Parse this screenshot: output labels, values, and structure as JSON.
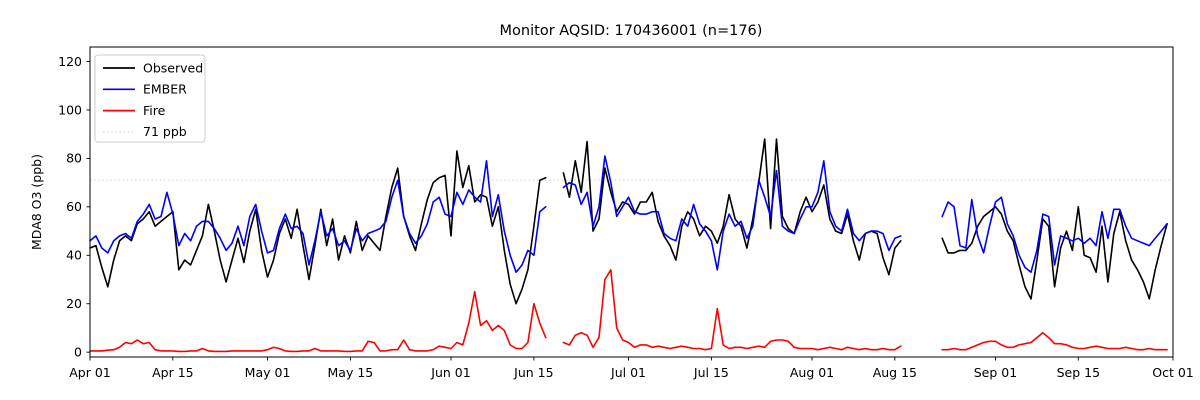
{
  "figure": {
    "title": "Monitor AQSID: 170436001 (n=176)",
    "ylabel": "MDA8 O3 (ppb)",
    "xlabel": ""
  },
  "chart_data": {
    "type": "line",
    "title": "Monitor AQSID: 170436001 (n=176)",
    "xlabel": "",
    "ylabel": "MDA8 O3 (ppb)",
    "ylim": [
      -2,
      126
    ],
    "yticks": [
      0,
      20,
      40,
      60,
      80,
      100,
      120
    ],
    "x_is_daily_dates": "Apr 01 through Sep 30, one point per day; null = missing day",
    "n_days": 183,
    "xticks": [
      {
        "label": "Apr 01",
        "day": 0
      },
      {
        "label": "Apr 15",
        "day": 14
      },
      {
        "label": "May 01",
        "day": 30
      },
      {
        "label": "May 15",
        "day": 44
      },
      {
        "label": "Jun 01",
        "day": 61
      },
      {
        "label": "Jun 15",
        "day": 75
      },
      {
        "label": "Jul 01",
        "day": 91
      },
      {
        "label": "Jul 15",
        "day": 105
      },
      {
        "label": "Aug 01",
        "day": 122
      },
      {
        "label": "Aug 15",
        "day": 136
      },
      {
        "label": "Sep 01",
        "day": 153
      },
      {
        "label": "Sep 15",
        "day": 167
      },
      {
        "label": "Oct 01",
        "day": 183
      }
    ],
    "reference_line": {
      "label": "71 ppb",
      "value": 71,
      "color": "#d9d9d9",
      "style": "dotted"
    },
    "legend": {
      "position": "upper-left",
      "entries": [
        {
          "label": "Observed",
          "color": "#000000",
          "style": "solid"
        },
        {
          "label": "EMBER",
          "color": "#0000ff",
          "style": "solid"
        },
        {
          "label": "Fire",
          "color": "#ff0000",
          "style": "solid"
        },
        {
          "label": "71 ppb",
          "color": "#d9d9d9",
          "style": "dotted"
        }
      ]
    },
    "series": [
      {
        "name": "Observed",
        "color": "#000000",
        "values": [
          43,
          44,
          35,
          27,
          38,
          46,
          48,
          46,
          53,
          55,
          58,
          52,
          54,
          56,
          58,
          34,
          38,
          36,
          42,
          48,
          61,
          50,
          38,
          29,
          38,
          47,
          37,
          50,
          59,
          42,
          31,
          38,
          49,
          55,
          47,
          59,
          44,
          30,
          44,
          59,
          44,
          55,
          38,
          48,
          41,
          54,
          42,
          48,
          45,
          42,
          56,
          68,
          76,
          56,
          48,
          42,
          53,
          63,
          70,
          72,
          73,
          48,
          83,
          68,
          77,
          62,
          65,
          64,
          52,
          60,
          42,
          28,
          20,
          26,
          34,
          52,
          71,
          72,
          null,
          null,
          74,
          64,
          79,
          66,
          87,
          50,
          55,
          76,
          66,
          58,
          62,
          61,
          57,
          62,
          62,
          66,
          54,
          48,
          44,
          38,
          52,
          58,
          55,
          48,
          52,
          50,
          45,
          52,
          65,
          55,
          52,
          43,
          55,
          70,
          88,
          51,
          88,
          56,
          51,
          49,
          58,
          64,
          58,
          62,
          69,
          55,
          50,
          49,
          57,
          46,
          38,
          49,
          50,
          49,
          39,
          32,
          43,
          46,
          null,
          null,
          null,
          null,
          null,
          null,
          47,
          41,
          41,
          42,
          42,
          45,
          52,
          56,
          58,
          60,
          57,
          50,
          46,
          36,
          27,
          22,
          38,
          55,
          52,
          27,
          43,
          50,
          42,
          60,
          40,
          39,
          33,
          52,
          29,
          49,
          58,
          46,
          38,
          34,
          29,
          22,
          34,
          44,
          53
        ]
      },
      {
        "name": "EMBER",
        "color": "#0000ff",
        "values": [
          46,
          48,
          43,
          41,
          46,
          48,
          49,
          47,
          54,
          57,
          61,
          55,
          56,
          66,
          57,
          44,
          49,
          46,
          52,
          54,
          54,
          51,
          47,
          42,
          45,
          52,
          44,
          56,
          61,
          50,
          41,
          42,
          51,
          57,
          51,
          52,
          49,
          36,
          46,
          58,
          48,
          51,
          44,
          46,
          42,
          51,
          46,
          49,
          50,
          51,
          54,
          64,
          71,
          56,
          49,
          45,
          48,
          53,
          62,
          64,
          57,
          56,
          66,
          61,
          67,
          64,
          62,
          79,
          56,
          65,
          50,
          40,
          33,
          36,
          42,
          40,
          58,
          60,
          null,
          null,
          68,
          70,
          69,
          61,
          66,
          52,
          60,
          81,
          70,
          56,
          60,
          64,
          58,
          57,
          57,
          58,
          58,
          49,
          47,
          46,
          55,
          52,
          61,
          53,
          50,
          46,
          34,
          50,
          57,
          52,
          54,
          47,
          52,
          71,
          64,
          56,
          75,
          52,
          50,
          49,
          55,
          60,
          60,
          66,
          79,
          58,
          52,
          50,
          59,
          49,
          46,
          49,
          50,
          50,
          49,
          42,
          47,
          48,
          null,
          null,
          null,
          null,
          null,
          null,
          56,
          62,
          60,
          44,
          43,
          63,
          48,
          41,
          52,
          62,
          64,
          53,
          48,
          40,
          35,
          33,
          42,
          57,
          56,
          36,
          48,
          47,
          46,
          47,
          45,
          47,
          44,
          58,
          47,
          59,
          59,
          52,
          47,
          46,
          45,
          44,
          47,
          50,
          53
        ]
      },
      {
        "name": "Fire",
        "color": "#ff0000",
        "values": [
          0.5,
          0.5,
          0.5,
          0.8,
          1,
          2,
          4,
          3.5,
          5,
          3.5,
          4,
          1,
          0.5,
          0.5,
          0.5,
          0.3,
          0.3,
          0.5,
          0.5,
          1.5,
          0.5,
          0.3,
          0.3,
          0.3,
          0.5,
          0.5,
          0.5,
          0.5,
          0.5,
          0.5,
          1,
          2,
          1.5,
          0.5,
          0.3,
          0.3,
          0.5,
          0.5,
          1.5,
          0.5,
          0.5,
          0.5,
          0.5,
          0.3,
          0.3,
          0.5,
          0.5,
          4.5,
          4,
          0.5,
          0.5,
          1,
          1,
          5,
          1,
          0.5,
          0.5,
          0.5,
          1,
          2.5,
          2,
          1.5,
          4,
          3,
          12,
          25,
          11,
          13,
          9,
          11,
          9,
          3,
          1.5,
          1.5,
          4,
          20,
          12,
          6,
          null,
          null,
          4,
          3,
          7,
          8,
          7,
          2,
          6,
          30,
          34,
          10,
          5,
          4,
          2,
          3,
          3,
          2,
          2.5,
          2,
          1.5,
          2,
          2.5,
          2,
          1.5,
          1.5,
          1,
          1.5,
          18,
          3,
          1.5,
          2,
          2,
          1.5,
          2,
          2.5,
          2,
          4.5,
          5,
          5,
          4.5,
          2,
          1.5,
          1.5,
          1.5,
          1,
          1.5,
          2,
          1.5,
          1,
          2,
          1.5,
          1,
          1.5,
          1,
          1,
          1.5,
          1,
          1,
          2.5,
          null,
          null,
          null,
          null,
          null,
          null,
          1,
          1,
          1.5,
          1,
          1,
          2,
          3,
          4,
          4.5,
          4.5,
          3,
          2,
          2,
          3,
          3.5,
          4,
          6,
          8,
          6,
          3.5,
          3.5,
          3,
          2,
          1.5,
          1.5,
          2,
          2.5,
          2,
          1.5,
          1.5,
          1.5,
          2,
          1.5,
          1,
          1,
          1.5,
          1,
          1,
          1
        ]
      }
    ]
  }
}
